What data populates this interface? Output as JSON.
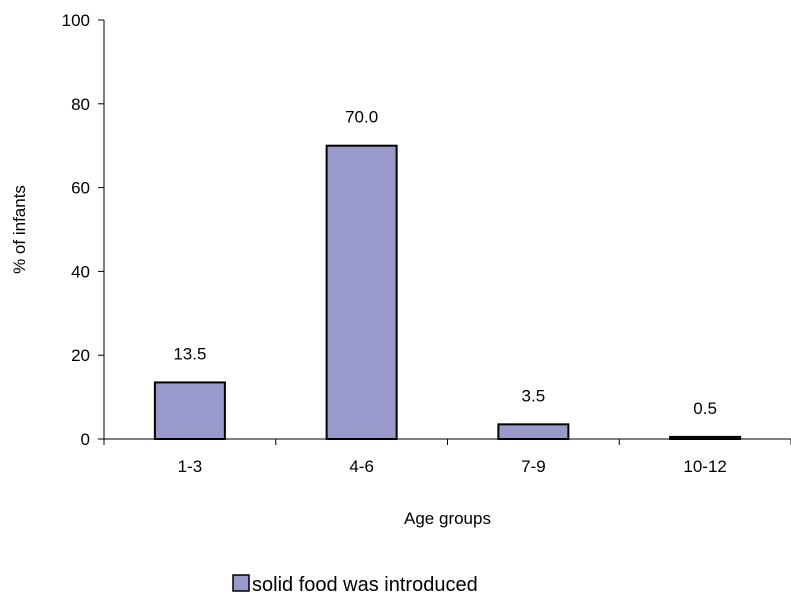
{
  "chart_data": {
    "type": "bar",
    "categories": [
      "1-3",
      "4-6",
      "7-9",
      "10-12"
    ],
    "series": [
      {
        "name": "solid food was introduced",
        "values": [
          13.5,
          70.0,
          3.5,
          0.5
        ],
        "data_labels": [
          "13.5",
          "70.0",
          "3.5",
          "0.5"
        ],
        "color": "#9999cc"
      }
    ],
    "xlabel": "Age groups",
    "ylabel": "% of infants",
    "ylim": [
      0,
      100
    ],
    "yticks": [
      0,
      20,
      40,
      60,
      80,
      100
    ],
    "grid": false,
    "legend_position": "bottom"
  }
}
